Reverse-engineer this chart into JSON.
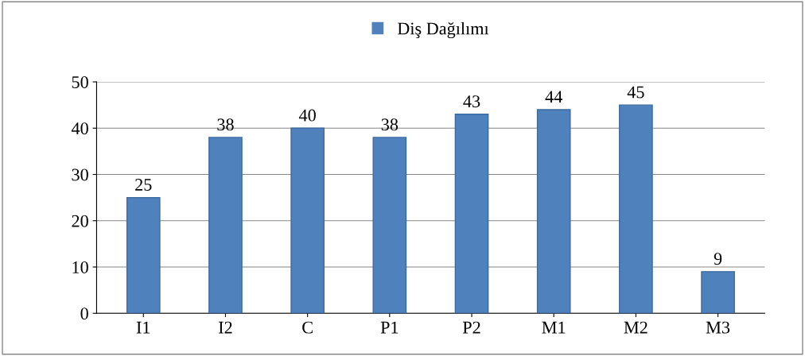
{
  "chart_data": {
    "type": "bar",
    "categories": [
      "I1",
      "I2",
      "C",
      "P1",
      "P2",
      "M1",
      "M2",
      "M3"
    ],
    "series": [
      {
        "name": "Diş Dağılımı",
        "color": "#4f81bd",
        "values": [
          25,
          38,
          40,
          38,
          43,
          44,
          45,
          9
        ]
      }
    ],
    "ylim": [
      0,
      50
    ],
    "yticks": [
      0,
      10,
      20,
      30,
      40,
      50
    ],
    "grid": "y",
    "legend": "top",
    "data_labels": true
  }
}
